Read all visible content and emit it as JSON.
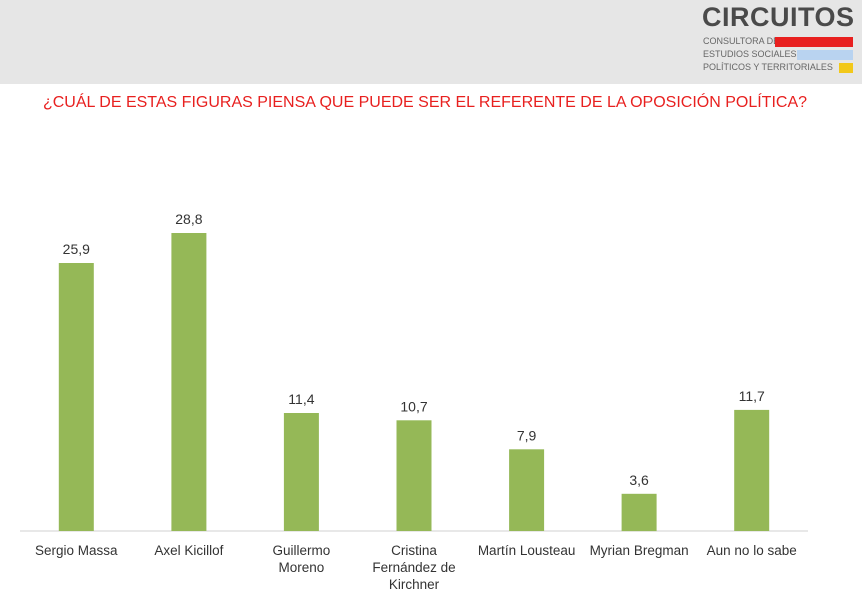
{
  "header": {
    "logo": {
      "word": "CIRCUITOS",
      "line1": "CONSULTORA DE",
      "line2": "ESTUDIOS SOCIALES,",
      "line3": "POLÍTICOS Y TERRITORIALES",
      "bar_colors": [
        "#e8201f",
        "#b9d3f0",
        "#f2c81a"
      ]
    }
  },
  "colors": {
    "bar": "#95b857",
    "title": "#e8201f"
  },
  "chart_data": {
    "type": "bar",
    "title": "¿CUÁL DE ESTAS FIGURAS PIENSA QUE PUEDE SER EL REFERENTE DE LA OPOSICIÓN POLÍTICA?",
    "categories": [
      [
        "Sergio Massa"
      ],
      [
        "Axel Kicillof"
      ],
      [
        "Guillermo",
        "Moreno"
      ],
      [
        "Cristina",
        "Fernández de",
        "Kirchner"
      ],
      [
        "Martín Lousteau"
      ],
      [
        "Myrian Bregman"
      ],
      [
        "Aun no lo sabe"
      ]
    ],
    "values": [
      25.9,
      28.8,
      11.4,
      10.7,
      7.9,
      3.6,
      11.7
    ],
    "value_labels": [
      "25,9",
      "28,8",
      "11,4",
      "10,7",
      "7,9",
      "3,6",
      "11,7"
    ],
    "xlabel": "",
    "ylabel": "",
    "ylim": [
      0,
      30
    ],
    "grid": false,
    "legend": "none"
  }
}
